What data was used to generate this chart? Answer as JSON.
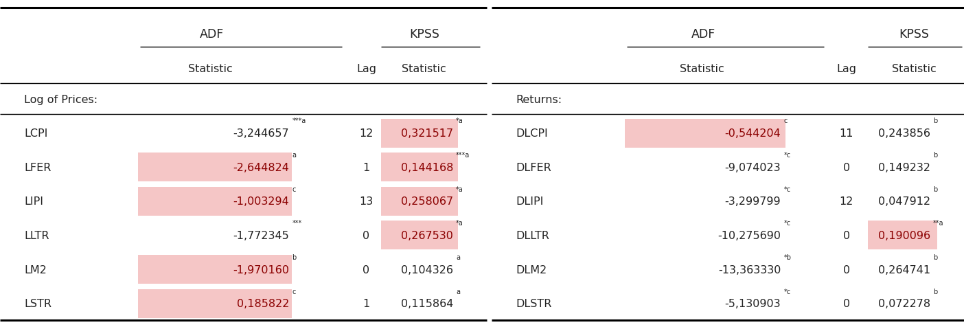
{
  "left_section_label": "Log of Prices:",
  "right_section_label": "Returns:",
  "left_rows": [
    {
      "var": "LCPI",
      "adf_stat": "-3,244657",
      "adf_sup": "***a",
      "lag": "12",
      "kpss_stat": "0,321517",
      "kpss_sup": "*a",
      "adf_highlight": false,
      "kpss_highlight": true
    },
    {
      "var": "LFER",
      "adf_stat": "-2,644824",
      "adf_sup": "a",
      "lag": "1",
      "kpss_stat": "0,144168",
      "kpss_sup": "***a",
      "adf_highlight": true,
      "kpss_highlight": true
    },
    {
      "var": "LIPI",
      "adf_stat": "-1,003294",
      "adf_sup": "c",
      "lag": "13",
      "kpss_stat": "0,258067",
      "kpss_sup": "*a",
      "adf_highlight": true,
      "kpss_highlight": true
    },
    {
      "var": "LLTR",
      "adf_stat": "-1,772345",
      "adf_sup": "***",
      "lag": "0",
      "kpss_stat": "0,267530",
      "kpss_sup": "*a",
      "adf_highlight": false,
      "kpss_highlight": true
    },
    {
      "var": "LM2",
      "adf_stat": "-1,970160",
      "adf_sup": "b",
      "lag": "0",
      "kpss_stat": "0,104326",
      "kpss_sup": "a",
      "adf_highlight": true,
      "kpss_highlight": false
    },
    {
      "var": "LSTR",
      "adf_stat": "0,185822",
      "adf_sup": "c",
      "lag": "1",
      "kpss_stat": "0,115864",
      "kpss_sup": "a",
      "adf_highlight": true,
      "kpss_highlight": false
    }
  ],
  "right_rows": [
    {
      "var": "DLCPI",
      "adf_stat": "-0,544204",
      "adf_sup": "c",
      "lag": "11",
      "kpss_stat": "0,243856",
      "kpss_sup": "b",
      "adf_highlight": true,
      "kpss_highlight": false
    },
    {
      "var": "DLFER",
      "adf_stat": "-9,074023",
      "adf_sup": "*c",
      "lag": "0",
      "kpss_stat": "0,149232",
      "kpss_sup": "b",
      "adf_highlight": false,
      "kpss_highlight": false
    },
    {
      "var": "DLIPI",
      "adf_stat": "-3,299799",
      "adf_sup": "*c",
      "lag": "12",
      "kpss_stat": "0,047912",
      "kpss_sup": "b",
      "adf_highlight": false,
      "kpss_highlight": false
    },
    {
      "var": "DLLTR",
      "adf_stat": "-10,275690",
      "adf_sup": "*c",
      "lag": "0",
      "kpss_stat": "0,190096",
      "kpss_sup": "**a",
      "adf_highlight": false,
      "kpss_highlight": true
    },
    {
      "var": "DLM2",
      "adf_stat": "-13,363330",
      "adf_sup": "*b",
      "lag": "0",
      "kpss_stat": "0,264741",
      "kpss_sup": "b",
      "adf_highlight": false,
      "kpss_highlight": false
    },
    {
      "var": "DLSTR",
      "adf_stat": "-5,130903",
      "adf_sup": "*c",
      "lag": "0",
      "kpss_stat": "0,072278",
      "kpss_sup": "b",
      "adf_highlight": false,
      "kpss_highlight": false
    }
  ],
  "highlight_color": "#f5c6c6",
  "text_red": "#8b0000",
  "text_black": "#222222",
  "bg_color": "#ffffff",
  "fs_main": 11.5,
  "fs_sup": 7.0,
  "fs_header": 12.5
}
